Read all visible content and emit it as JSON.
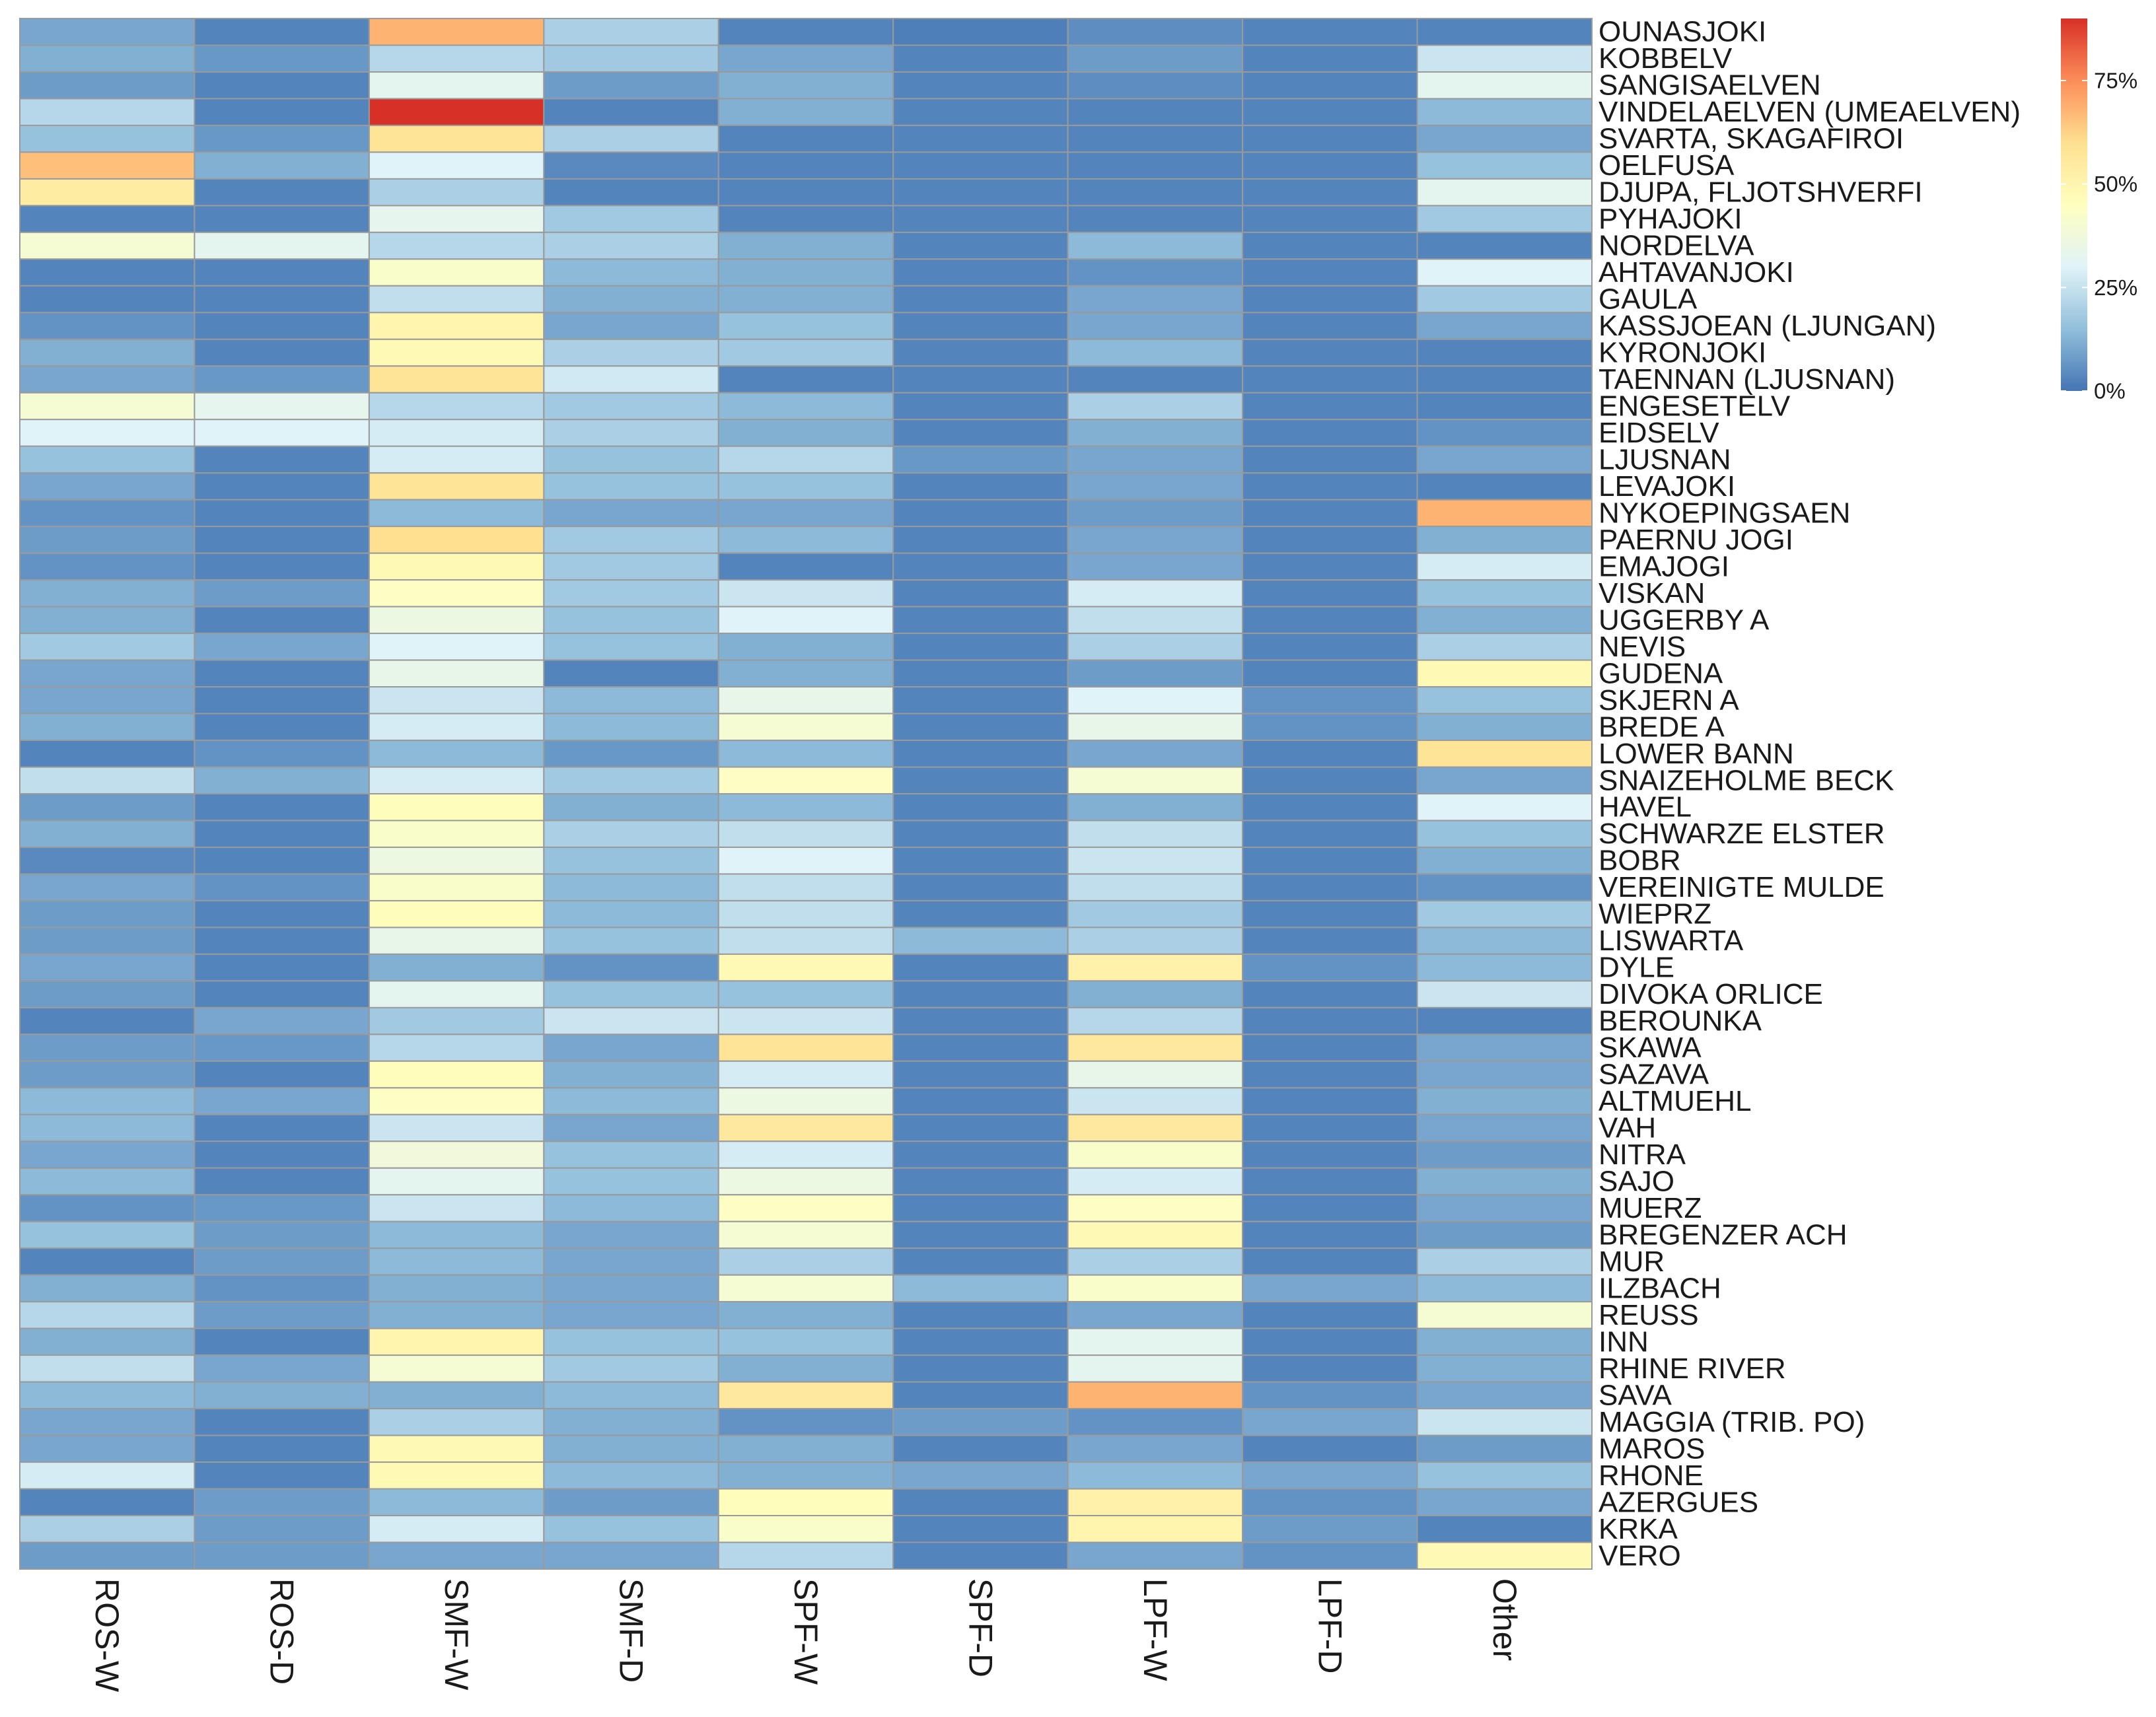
{
  "chart_data": {
    "type": "heatmap",
    "title": "",
    "xlabel": "",
    "ylabel": "",
    "columns": [
      "ROS-W",
      "ROS-D",
      "SMF-W",
      "SMF-D",
      "SPF-W",
      "SPF-D",
      "LPF-W",
      "LPF-D",
      "Other"
    ],
    "rows": [
      "OUNASJOKI",
      "KOBBELV",
      "SANGISAELVEN",
      "VINDELAELVEN (UMEAELVEN)",
      "SVARTA, SKAGAFIROI",
      "OELFUSA",
      "DJUPA, FLJOTSHVERFI",
      "PYHAJOKI",
      "NORDELVA",
      "AHTAVANJOKI",
      "GAULA",
      "KASSJOEAN (LJUNGAN)",
      "KYRONJOKI",
      "TAENNAN (LJUSNAN)",
      "ENGESETELV",
      "EIDSELV",
      "LJUSNAN",
      "LEVAJOKI",
      "NYKOEPINGSAEN",
      "PAERNU JOGI",
      "EMAJOGI",
      "VISKAN",
      "UGGERBY A",
      "NEVIS",
      "GUDENA",
      "SKJERN A",
      "BREDE A",
      "LOWER BANN",
      "SNAIZEHOLME BECK",
      "HAVEL",
      "SCHWARZE ELSTER",
      "BOBR",
      "VEREINIGTE MULDE",
      "WIEPRZ",
      "LISWARTA",
      "DYLE",
      "DIVOKA ORLICE",
      "BEROUNKA",
      "SKAWA",
      "SAZAVA",
      "ALTMUEHL",
      "VAH",
      "NITRA",
      "SAJO",
      "MUERZ",
      "BREGENZER ACH",
      "MUR",
      "ILZBACH",
      "REUSS",
      "INN",
      "RHINE RIVER",
      "SAVA",
      "MAGGIA (TRIB. PO)",
      "MAROS",
      "RHONE",
      "AZERGUES",
      "KRKA",
      "VERO"
    ],
    "values": [
      [
        10,
        3,
        68,
        20,
        3,
        2,
        5,
        3,
        3
      ],
      [
        12,
        7,
        22,
        18,
        10,
        3,
        8,
        3,
        26
      ],
      [
        8,
        3,
        32,
        8,
        12,
        3,
        5,
        3,
        32
      ],
      [
        22,
        3,
        90,
        3,
        12,
        3,
        3,
        3,
        14
      ],
      [
        16,
        7,
        58,
        20,
        3,
        3,
        3,
        3,
        10
      ],
      [
        66,
        12,
        30,
        4,
        3,
        3,
        3,
        3,
        16
      ],
      [
        54,
        3,
        20,
        3,
        3,
        3,
        3,
        3,
        32
      ],
      [
        3,
        3,
        33,
        18,
        3,
        3,
        3,
        3,
        18
      ],
      [
        40,
        32,
        22,
        20,
        12,
        3,
        14,
        3,
        3
      ],
      [
        3,
        3,
        42,
        14,
        12,
        3,
        6,
        3,
        30
      ],
      [
        3,
        3,
        24,
        12,
        12,
        3,
        10,
        3,
        18
      ],
      [
        6,
        3,
        50,
        10,
        16,
        3,
        10,
        3,
        10
      ],
      [
        12,
        3,
        48,
        20,
        18,
        3,
        14,
        3,
        3
      ],
      [
        10,
        7,
        58,
        27,
        3,
        3,
        3,
        3,
        3
      ],
      [
        40,
        33,
        22,
        18,
        14,
        3,
        20,
        3,
        3
      ],
      [
        30,
        30,
        28,
        20,
        12,
        3,
        12,
        3,
        6
      ],
      [
        16,
        3,
        28,
        16,
        22,
        7,
        10,
        3,
        10
      ],
      [
        10,
        3,
        58,
        16,
        16,
        3,
        10,
        3,
        3
      ],
      [
        6,
        3,
        14,
        10,
        10,
        3,
        8,
        3,
        68
      ],
      [
        8,
        3,
        60,
        18,
        14,
        3,
        10,
        3,
        12
      ],
      [
        6,
        3,
        48,
        18,
        3,
        3,
        10,
        3,
        28
      ],
      [
        12,
        8,
        44,
        18,
        26,
        3,
        28,
        3,
        16
      ],
      [
        12,
        3,
        36,
        16,
        30,
        3,
        24,
        3,
        12
      ],
      [
        18,
        10,
        30,
        16,
        12,
        3,
        20,
        3,
        20
      ],
      [
        10,
        3,
        34,
        3,
        12,
        3,
        8,
        3,
        48
      ],
      [
        10,
        3,
        26,
        14,
        34,
        3,
        30,
        6,
        16
      ],
      [
        12,
        3,
        28,
        14,
        40,
        3,
        34,
        6,
        12
      ],
      [
        3,
        6,
        14,
        7,
        14,
        3,
        10,
        3,
        58
      ],
      [
        24,
        12,
        28,
        18,
        44,
        3,
        40,
        3,
        10
      ],
      [
        8,
        3,
        46,
        12,
        14,
        3,
        12,
        3,
        30
      ],
      [
        12,
        3,
        42,
        20,
        24,
        3,
        24,
        3,
        16
      ],
      [
        4,
        3,
        36,
        16,
        30,
        3,
        26,
        3,
        12
      ],
      [
        10,
        6,
        42,
        14,
        24,
        3,
        24,
        3,
        6
      ],
      [
        8,
        3,
        46,
        14,
        24,
        3,
        18,
        3,
        18
      ],
      [
        8,
        3,
        34,
        16,
        24,
        14,
        20,
        3,
        14
      ],
      [
        10,
        3,
        12,
        6,
        48,
        3,
        52,
        6,
        14
      ],
      [
        8,
        3,
        32,
        16,
        16,
        3,
        12,
        3,
        26
      ],
      [
        3,
        10,
        18,
        26,
        26,
        3,
        22,
        3,
        3
      ],
      [
        8,
        7,
        22,
        10,
        58,
        3,
        56,
        3,
        10
      ],
      [
        8,
        3,
        46,
        12,
        28,
        3,
        34,
        3,
        10
      ],
      [
        14,
        10,
        44,
        14,
        36,
        3,
        26,
        3,
        12
      ],
      [
        14,
        3,
        26,
        10,
        56,
        3,
        56,
        3,
        10
      ],
      [
        10,
        3,
        38,
        16,
        28,
        3,
        42,
        3,
        8
      ],
      [
        14,
        3,
        32,
        16,
        36,
        3,
        28,
        3,
        12
      ],
      [
        6,
        7,
        26,
        14,
        44,
        3,
        44,
        3,
        10
      ],
      [
        16,
        8,
        14,
        10,
        40,
        3,
        48,
        3,
        8
      ],
      [
        3,
        8,
        14,
        10,
        20,
        3,
        20,
        3,
        20
      ],
      [
        12,
        6,
        12,
        10,
        40,
        14,
        42,
        10,
        14
      ],
      [
        22,
        8,
        12,
        10,
        12,
        3,
        10,
        3,
        40
      ],
      [
        12,
        3,
        50,
        16,
        16,
        3,
        32,
        3,
        12
      ],
      [
        24,
        10,
        40,
        18,
        12,
        3,
        32,
        3,
        12
      ],
      [
        14,
        12,
        12,
        14,
        56,
        3,
        68,
        6,
        10
      ],
      [
        10,
        3,
        20,
        12,
        6,
        8,
        6,
        10,
        26
      ],
      [
        10,
        3,
        48,
        12,
        12,
        3,
        10,
        3,
        8
      ],
      [
        28,
        3,
        48,
        14,
        12,
        10,
        14,
        10,
        16
      ],
      [
        3,
        8,
        14,
        8,
        46,
        3,
        52,
        6,
        10
      ],
      [
        20,
        8,
        28,
        16,
        42,
        3,
        50,
        8,
        3
      ],
      [
        8,
        8,
        10,
        10,
        22,
        3,
        10,
        6,
        48
      ]
    ],
    "color_scale": {
      "min": 0,
      "max": 90,
      "colors": [
        "#4575b4",
        "#91bfdb",
        "#e0f3f8",
        "#ffffbf",
        "#fee090",
        "#fc8d59",
        "#d73027"
      ],
      "ticks": [
        {
          "value": 0,
          "label": "0%"
        },
        {
          "value": 25,
          "label": "25%"
        },
        {
          "value": 50,
          "label": "50%"
        },
        {
          "value": 75,
          "label": "75%"
        }
      ]
    },
    "grid": true,
    "legend": "top-right"
  }
}
